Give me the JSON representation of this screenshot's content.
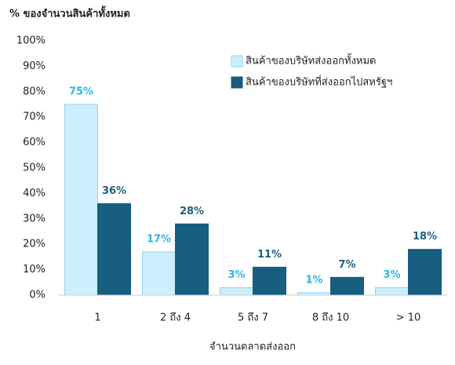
{
  "chart_data": {
    "type": "bar",
    "y_axis_label": "% ของจำนวนสินค้าทั้งหมด",
    "x_axis_label": "จำนวนตลาดส่งออก",
    "categories": [
      "1",
      "2 ถึง 4",
      "5 ถึง 7",
      "8 ถึง 10",
      "> 10"
    ],
    "series": [
      {
        "name": "สินค้าของบริษัทส่งออกทั้งหมด",
        "color": "#cdeefb",
        "label_color": "#29b6e6",
        "values": [
          75,
          17,
          3,
          1,
          3
        ],
        "value_labels": [
          "75%",
          "17%",
          "3%",
          "1%",
          "3%"
        ]
      },
      {
        "name": "สินค้าของบริษัทที่ส่งออกไปสหรัฐฯ",
        "color": "#175e80",
        "label_color": "#1d5f80",
        "values": [
          36,
          28,
          11,
          7,
          18
        ],
        "value_labels": [
          "36%",
          "28%",
          "11%",
          "7%",
          "18%"
        ]
      }
    ],
    "ylim": [
      0,
      100
    ],
    "yticks": [
      {
        "value": 0,
        "label": "0%"
      },
      {
        "value": 10,
        "label": "10%"
      },
      {
        "value": 20,
        "label": "20%"
      },
      {
        "value": 30,
        "label": "30%"
      },
      {
        "value": 40,
        "label": "40%"
      },
      {
        "value": 50,
        "label": "50%"
      },
      {
        "value": 60,
        "label": "60%"
      },
      {
        "value": 70,
        "label": "70%"
      },
      {
        "value": 80,
        "label": "80%"
      },
      {
        "value": 90,
        "label": "90%"
      },
      {
        "value": 100,
        "label": "100%"
      }
    ],
    "grid": false,
    "legend": "top-right"
  }
}
